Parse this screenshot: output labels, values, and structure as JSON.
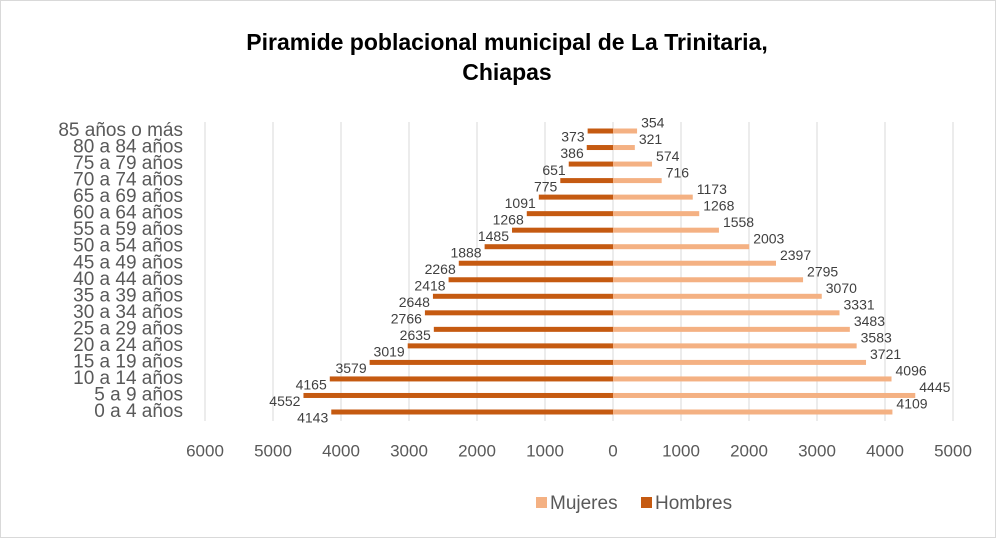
{
  "chart_data": {
    "type": "bar",
    "orientation": "horizontal",
    "title": [
      "Piramide poblacional municipal de La Trinitaria,",
      "Chiapas"
    ],
    "categories": [
      "0 a 4 años",
      "5 a 9 años",
      "10 a 14 años",
      "15 a 19 años",
      "20 a 24 años",
      "25 a 29 años",
      "30 a 34 años",
      "35 a 39 años",
      "40 a 44 años",
      "45 a 49 años",
      "50 a 54 años",
      "55 a 59 años",
      "60 a 64 años",
      "65 a 69 años",
      "70 a 74 años",
      "75 a 79 años",
      "80 a 84 años",
      "85 años o más"
    ],
    "series": [
      {
        "name": "Mujeres",
        "color": "#f4b183",
        "values": [
          4109,
          4445,
          4096,
          3721,
          3583,
          3483,
          3331,
          3070,
          2795,
          2397,
          2003,
          1558,
          1268,
          1173,
          716,
          574,
          321,
          354
        ]
      },
      {
        "name": "Hombres",
        "color": "#c55a11",
        "values": [
          -4143,
          -4552,
          -4165,
          -3579,
          -3019,
          -2635,
          -2766,
          -2648,
          -2418,
          -2268,
          -1888,
          -1485,
          -1268,
          -1091,
          -775,
          -651,
          -386,
          -373
        ],
        "value_labels": [
          "4143",
          "4552",
          "4165",
          "3579",
          "3019",
          "2635",
          "2766",
          "2648",
          "2418",
          "2268",
          "1888",
          "1485",
          "1268",
          "1091",
          "775",
          "651",
          "386",
          "373"
        ]
      }
    ],
    "xlim": [
      -6000,
      5000
    ],
    "xticks": [
      {
        "value": -6000,
        "label": "6000"
      },
      {
        "value": -5000,
        "label": "5000"
      },
      {
        "value": -4000,
        "label": "4000"
      },
      {
        "value": -3000,
        "label": "3000"
      },
      {
        "value": -2000,
        "label": "2000"
      },
      {
        "value": -1000,
        "label": "1000"
      },
      0,
      1000,
      2000,
      3000,
      4000,
      5000
    ],
    "grid": true,
    "legend": "bottom"
  }
}
